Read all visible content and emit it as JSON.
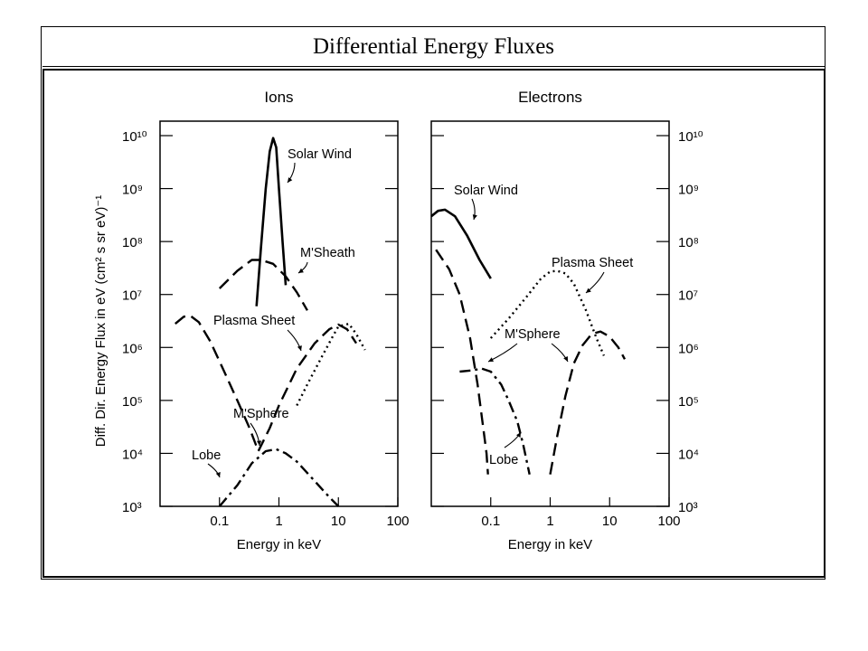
{
  "slide": {
    "title": "Differential Energy Fluxes"
  },
  "chart_data": [
    {
      "type": "line",
      "title": "Ions",
      "xlabel": "Energy in keV",
      "ylabel": "Diff. Dir. Energy Flux in eV (cm² s sr eV)⁻¹",
      "xscale": "log",
      "yscale": "log",
      "xlim": [
        0.01,
        100
      ],
      "ylim": [
        1000,
        10000000000
      ],
      "x_ticks": [
        "0.1",
        "1",
        "10",
        "100"
      ],
      "y_ticks": [
        "10³",
        "10⁴",
        "10⁵",
        "10⁶",
        "10⁷",
        "10⁸",
        "10⁹",
        "10¹⁰"
      ],
      "series": [
        {
          "name": "Solar Wind",
          "style": "solid",
          "x": [
            0.42,
            0.5,
            0.6,
            0.7,
            0.8,
            0.9,
            1.0,
            1.15,
            1.3
          ],
          "y": [
            6000000,
            80000000,
            1000000000,
            5000000000,
            9000000000,
            6000000000,
            1000000000,
            100000000,
            15000000
          ]
        },
        {
          "name": "M'Sheath",
          "style": "dashed",
          "x": [
            0.1,
            0.2,
            0.35,
            0.5,
            0.8,
            1.3,
            2.0,
            3.0
          ],
          "y": [
            13000000,
            28000000,
            45000000,
            45000000,
            38000000,
            22000000,
            11000000,
            5000000
          ]
        },
        {
          "name": "Plasma Sheet",
          "style": "dotted",
          "x": [
            2.0,
            3.0,
            5.0,
            8.0,
            10.0,
            15.0,
            20.0,
            28.0
          ],
          "y": [
            80000,
            200000,
            600000,
            1600000,
            2500000,
            2800000,
            1800000,
            900000
          ]
        },
        {
          "name": "M'Sphere",
          "style": "dashed",
          "x": [
            0.018,
            0.025,
            0.032,
            0.045,
            0.07,
            0.12,
            0.2,
            0.32,
            0.45,
            0.7,
            1.0,
            2.0,
            4.0,
            7.0,
            10.0,
            14.0,
            20.0
          ],
          "y": [
            2800000,
            3800000,
            4000000,
            3000000,
            1300000,
            350000,
            100000,
            30000,
            11000,
            30000,
            80000,
            400000,
            1200000,
            2200000,
            2700000,
            2200000,
            1200000
          ]
        },
        {
          "name": "Lobe",
          "style": "dash-dot",
          "x": [
            0.1,
            0.2,
            0.35,
            0.6,
            0.9,
            1.3,
            2.0,
            4.0,
            7.0,
            10.0
          ],
          "y": [
            1000,
            2500,
            6500,
            11000,
            12000,
            10000,
            7000,
            3000,
            1500,
            1000
          ]
        }
      ],
      "annotations": [
        "Solar Wind",
        "M'Sheath",
        "Plasma Sheet",
        "M'Sphere",
        "Lobe"
      ]
    },
    {
      "type": "line",
      "title": "Electrons",
      "xlabel": "Energy in keV",
      "ylabel": "",
      "xscale": "log",
      "yscale": "log",
      "xlim": [
        0.01,
        100
      ],
      "ylim": [
        1000,
        10000000000
      ],
      "x_ticks": [
        "0.1",
        "1",
        "10",
        "100"
      ],
      "y_ticks": [
        "10³",
        "10⁴",
        "10⁵",
        "10⁶",
        "10⁷",
        "10⁸",
        "10⁹",
        "10¹⁰"
      ],
      "series": [
        {
          "name": "Solar Wind",
          "style": "solid",
          "x": [
            0.01,
            0.013,
            0.017,
            0.025,
            0.04,
            0.065,
            0.1
          ],
          "y": [
            300000000,
            380000000,
            400000000,
            300000000,
            130000000,
            45000000,
            20000000
          ]
        },
        {
          "name": "Plasma Sheet",
          "style": "dotted",
          "x": [
            0.1,
            0.2,
            0.4,
            0.7,
            1.0,
            1.3,
            1.8,
            2.5,
            4.0,
            6.0,
            8.0
          ],
          "y": [
            1500000,
            3500000,
            9000000,
            20000000,
            27000000,
            28000000,
            25000000,
            16000000,
            5000000,
            1500000,
            700000
          ]
        },
        {
          "name": "M'Sphere",
          "style": "dashed",
          "x": [
            0.012,
            0.02,
            0.03,
            0.045,
            0.06,
            0.075,
            0.085,
            0.09
          ],
          "y": [
            70000000,
            30000000,
            10000000,
            1500000,
            200000,
            30000,
            10000,
            4000
          ]
        },
        {
          "name": "M'Sphere",
          "style": "dashed",
          "x": [
            1.0,
            1.3,
            1.8,
            2.5,
            3.5,
            5.0,
            7.0,
            10.0,
            14.0,
            18.0
          ],
          "y": [
            4000,
            20000,
            120000,
            500000,
            1100000,
            1800000,
            2000000,
            1600000,
            1000000,
            600000
          ]
        },
        {
          "name": "Lobe",
          "style": "dash-dot",
          "x": [
            0.03,
            0.05,
            0.07,
            0.1,
            0.15,
            0.2,
            0.28,
            0.35,
            0.45
          ],
          "y": [
            350000,
            370000,
            400000,
            350000,
            200000,
            100000,
            40000,
            15000,
            4000
          ]
        }
      ],
      "annotations": [
        "Solar Wind",
        "Plasma Sheet",
        "M'Sphere",
        "Lobe"
      ]
    }
  ]
}
